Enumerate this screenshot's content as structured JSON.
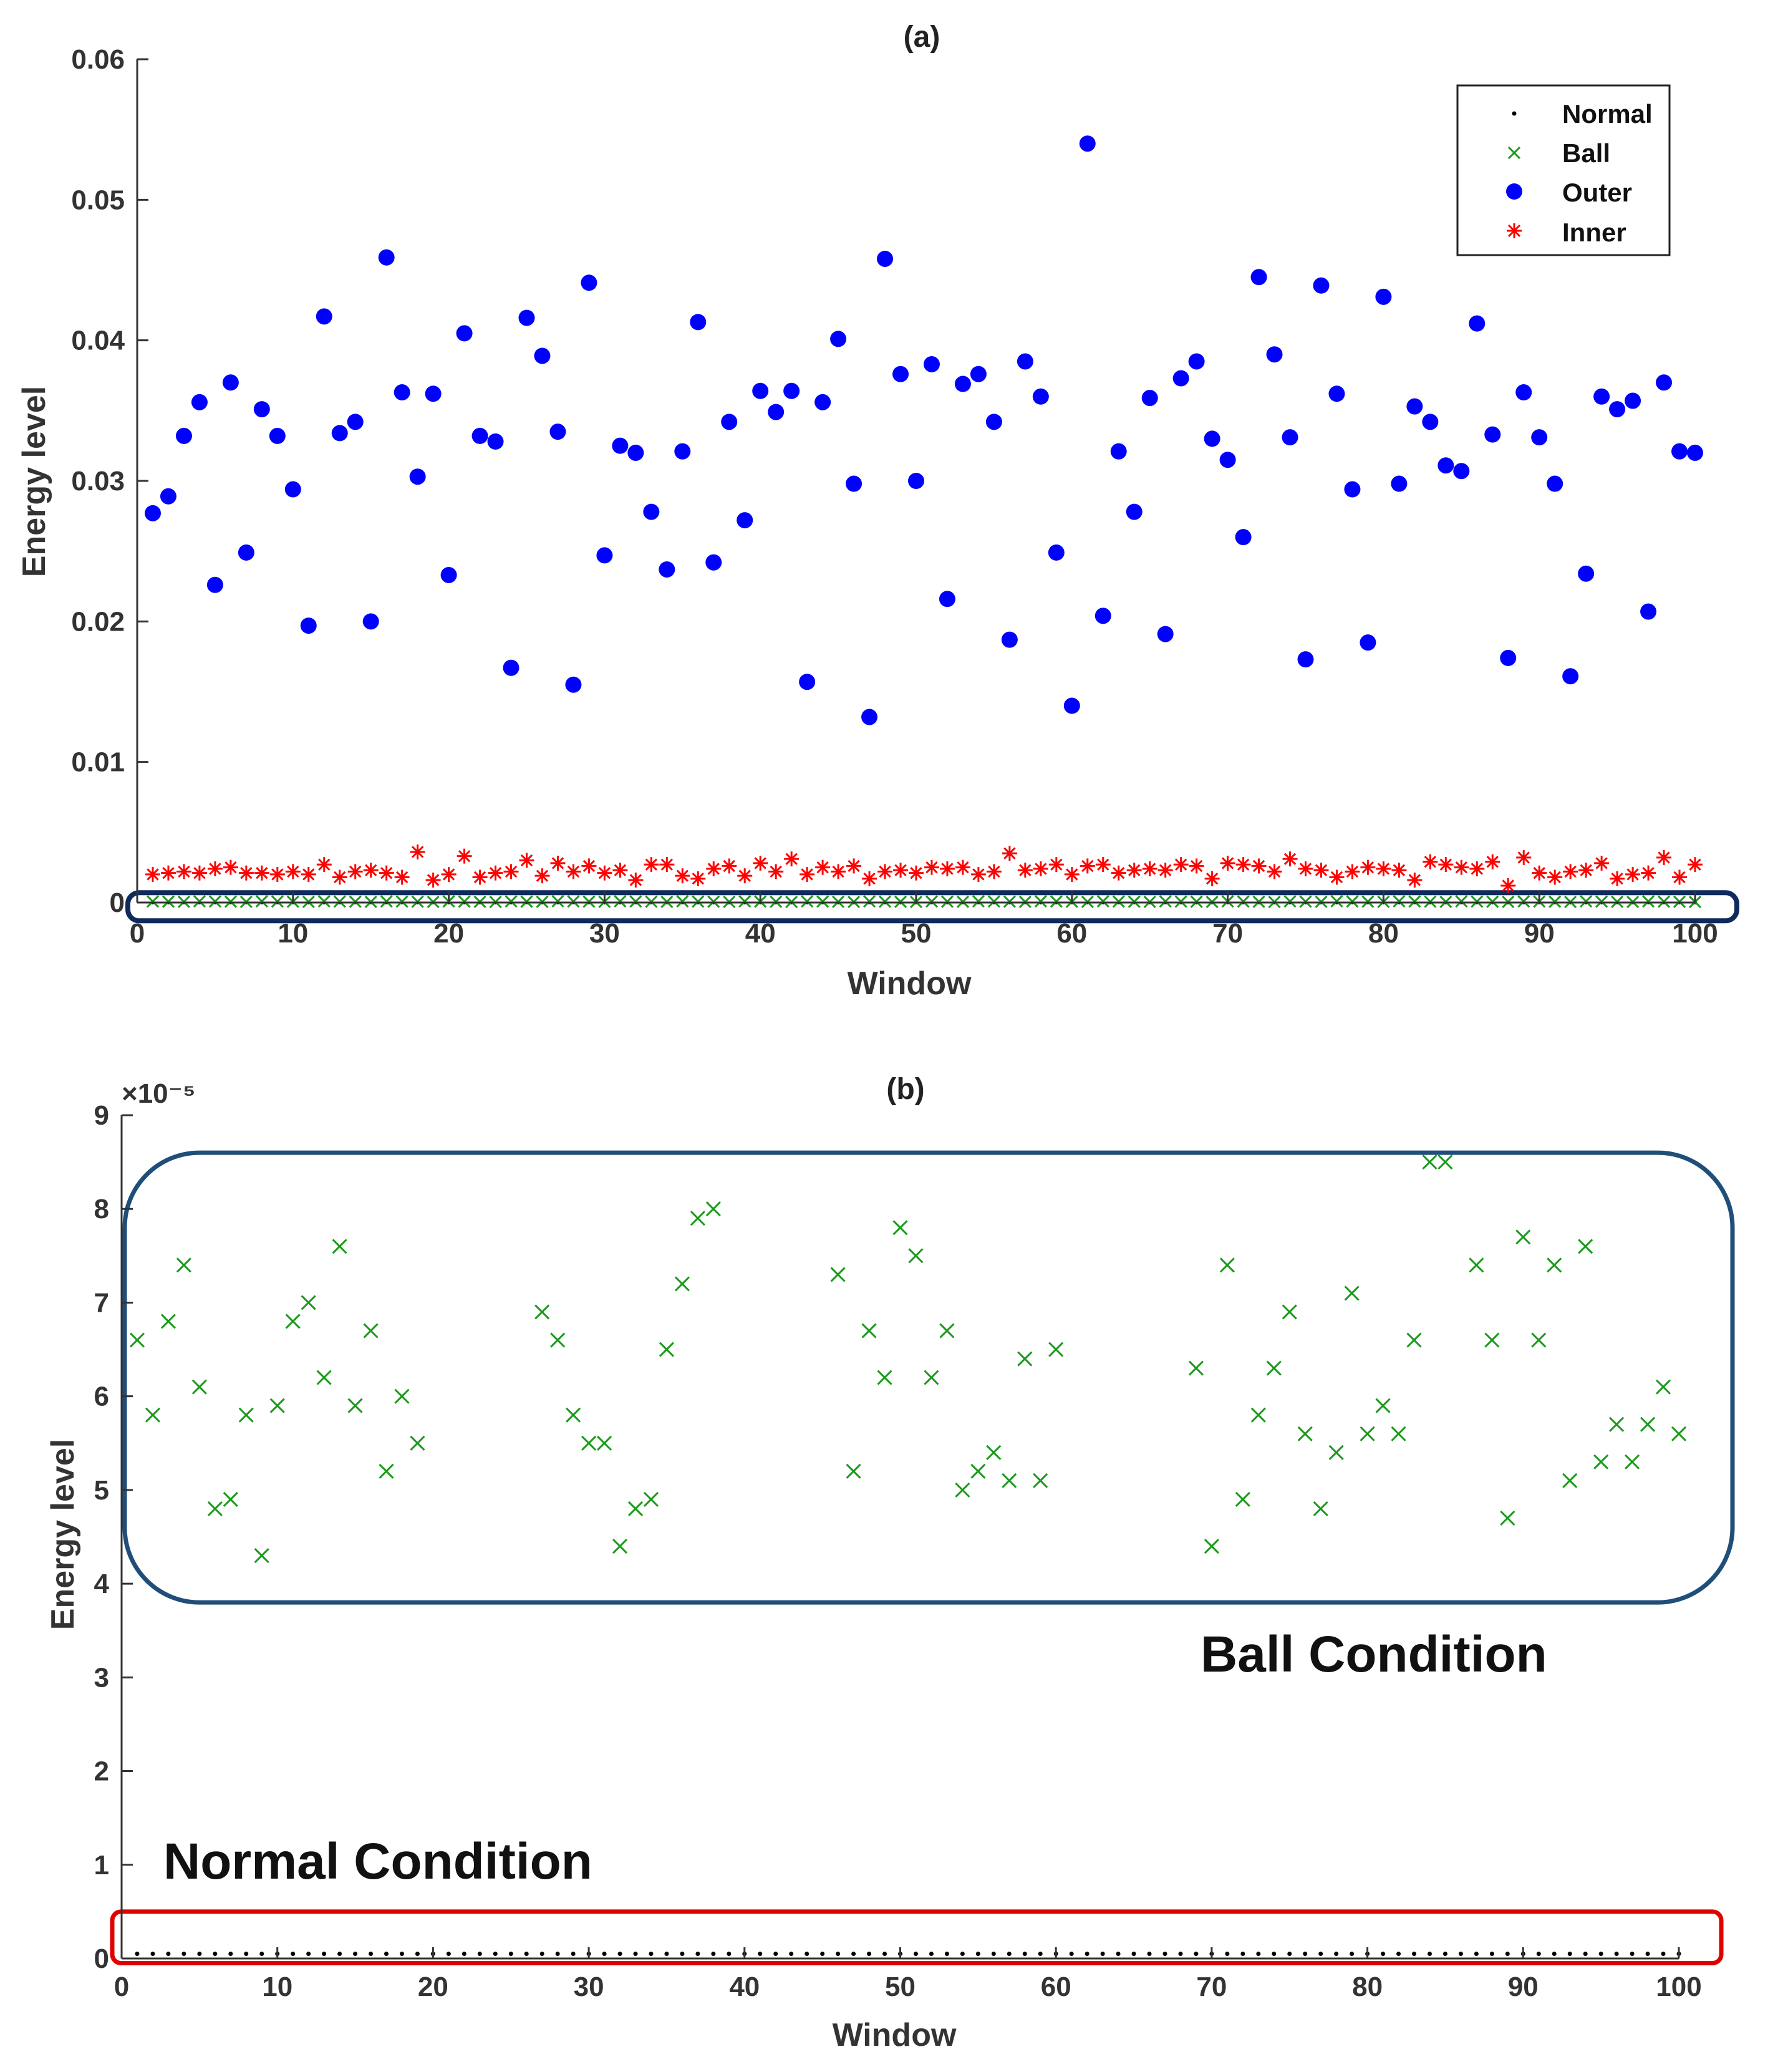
{
  "chart_data": [
    {
      "type": "scatter",
      "title": "(a)",
      "xlabel": "Window",
      "ylabel": "Energy level",
      "xlim": [
        0,
        100
      ],
      "ylim": [
        0,
        0.06
      ],
      "xticks": [
        0,
        10,
        20,
        30,
        40,
        50,
        60,
        70,
        80,
        90,
        100
      ],
      "yticks": [
        0,
        0.01,
        0.02,
        0.03,
        0.04,
        0.05,
        0.06
      ],
      "ytick_labels": [
        "0",
        "0.01",
        "0.02",
        "0.03",
        "0.04",
        "0.05",
        "0.06"
      ],
      "legend_position": "top-right",
      "legend": [
        "Normal",
        "Ball",
        "Outer",
        "Inner"
      ],
      "highlight_box": {
        "label": "",
        "y_range": [
          -0.0013,
          0.0007
        ],
        "color": "#0f2a5c"
      },
      "series": [
        {
          "name": "Normal",
          "marker": "dot",
          "color": "#000000",
          "x": "1..100",
          "values": "constant 0.000001"
        },
        {
          "name": "Ball",
          "marker": "x",
          "color": "#1a9a1a",
          "x": "1..100",
          "values": "0.00004-0.00009 (see panel b)"
        },
        {
          "name": "Outer",
          "marker": "circle",
          "color": "#0000ff",
          "x": "1..100",
          "values": [
            0.0277,
            0.0289,
            0.0332,
            0.0356,
            0.0226,
            0.037,
            0.0249,
            0.0351,
            0.0332,
            0.0294,
            0.0197,
            0.0417,
            0.0334,
            0.0342,
            0.02,
            0.0459,
            0.0363,
            0.0303,
            0.0362,
            0.0233,
            0.0405,
            0.0332,
            0.0328,
            0.0167,
            0.0416,
            0.0389,
            0.0335,
            0.0155,
            0.0441,
            0.0247,
            0.0325,
            0.032,
            0.0278,
            0.0237,
            0.0321,
            0.0413,
            0.0242,
            0.0342,
            0.0272,
            0.0364,
            0.0349,
            0.0364,
            0.0157,
            0.0356,
            0.0401,
            0.0298,
            0.0132,
            0.0458,
            0.0376,
            0.03,
            0.0383,
            0.0216,
            0.0369,
            0.0376,
            0.0342,
            0.0187,
            0.0385,
            0.036,
            0.0249,
            0.014,
            0.054,
            0.0204,
            0.0321,
            0.0278,
            0.0359,
            0.0191,
            0.0373,
            0.0385,
            0.033,
            0.0315,
            0.026,
            0.0445,
            0.039,
            0.0331,
            0.0173,
            0.0439,
            0.0362,
            0.0294,
            0.0185,
            0.0431,
            0.0298,
            0.0353,
            0.0342,
            0.0311,
            0.0307,
            0.0412,
            0.0333,
            0.0174,
            0.0363,
            0.0331,
            0.0298,
            0.0161,
            0.0234,
            0.036,
            0.0351,
            0.0357,
            0.0207,
            0.037,
            0.0321,
            0.032
          ]
        },
        {
          "name": "Inner",
          "marker": "star",
          "color": "#ff0000",
          "x": "1..100",
          "values": [
            0.002,
            0.0021,
            0.0022,
            0.0021,
            0.0024,
            0.0025,
            0.0021,
            0.0021,
            0.002,
            0.0022,
            0.002,
            0.0027,
            0.0018,
            0.0022,
            0.0023,
            0.0021,
            0.0018,
            0.0036,
            0.0016,
            0.002,
            0.0033,
            0.0018,
            0.0021,
            0.0022,
            0.003,
            0.0019,
            0.0028,
            0.0022,
            0.0026,
            0.0021,
            0.0023,
            0.0016,
            0.0027,
            0.0027,
            0.0019,
            0.0017,
            0.0024,
            0.0026,
            0.0019,
            0.0028,
            0.0022,
            0.0031,
            0.002,
            0.0025,
            0.0022,
            0.0026,
            0.0017,
            0.0022,
            0.0023,
            0.0021,
            0.0025,
            0.0024,
            0.0025,
            0.002,
            0.0022,
            0.0035,
            0.0023,
            0.0024,
            0.0027,
            0.002,
            0.0026,
            0.0027,
            0.0021,
            0.0023,
            0.0024,
            0.0023,
            0.0027,
            0.0026,
            0.0017,
            0.0028,
            0.0027,
            0.0026,
            0.0022,
            0.0031,
            0.0024,
            0.0023,
            0.0018,
            0.0022,
            0.0025,
            0.0024,
            0.0023,
            0.0016,
            0.0029,
            0.0027,
            0.0025,
            0.0024,
            0.0029,
            0.0012,
            0.0032,
            0.0021,
            0.0018,
            0.0022,
            0.0023,
            0.0028,
            0.0017,
            0.002,
            0.0021,
            0.0032,
            0.0018,
            0.0027
          ]
        }
      ]
    },
    {
      "type": "scatter",
      "title": "(b)",
      "xlabel": "Window",
      "ylabel": "Energy level",
      "exponent_label": "×10⁻⁵",
      "xlim": [
        0,
        100
      ],
      "ylim": [
        0,
        9
      ],
      "xticks": [
        0,
        10,
        20,
        30,
        40,
        50,
        60,
        70,
        80,
        90,
        100
      ],
      "yticks": [
        0,
        1,
        2,
        3,
        4,
        5,
        6,
        7,
        8,
        9
      ],
      "annotations": [
        "Ball Condition",
        "Normal Condition"
      ],
      "highlight_boxes": [
        {
          "label": "Ball Condition",
          "y_range": [
            3.8,
            8.6
          ],
          "color": "#1f4e79"
        },
        {
          "label": "Normal Condition",
          "y_range": [
            -0.05,
            0.5
          ],
          "color": "#e00000"
        }
      ],
      "series": [
        {
          "name": "Normal",
          "marker": "dot",
          "color": "#000000",
          "x": "1..100",
          "values": "constant 0.05"
        },
        {
          "name": "Ball",
          "marker": "x",
          "color": "#1a9a1a",
          "x": [
            1,
            2,
            3,
            4,
            5,
            6,
            7,
            8,
            9,
            10,
            11,
            12,
            13,
            14,
            15,
            16,
            17,
            18,
            19,
            27,
            28,
            29,
            30,
            31,
            32,
            33,
            34,
            35,
            36,
            37,
            38,
            46,
            47,
            48,
            49,
            50,
            51,
            52,
            53,
            54,
            55,
            56,
            57,
            58,
            59,
            60,
            69,
            70,
            71,
            72,
            73,
            74,
            75,
            76,
            77,
            78,
            79,
            80,
            81,
            82,
            83,
            84,
            85,
            87,
            88,
            89,
            90,
            91,
            92,
            93,
            94,
            95,
            96,
            97,
            98,
            99,
            100
          ],
          "values": [
            6.6,
            5.8,
            6.8,
            7.4,
            6.1,
            4.8,
            4.9,
            5.8,
            4.3,
            5.9,
            6.8,
            7.0,
            6.2,
            7.6,
            5.9,
            6.7,
            5.2,
            6.0,
            5.5,
            6.9,
            6.6,
            5.8,
            5.5,
            5.5,
            4.4,
            4.8,
            4.9,
            6.5,
            7.2,
            7.9,
            8.0,
            7.3,
            5.2,
            6.7,
            6.2,
            7.8,
            7.5,
            6.2,
            6.7,
            5.0,
            5.2,
            5.4,
            5.1,
            6.4,
            5.1,
            6.5,
            6.3,
            4.4,
            7.4,
            4.9,
            5.8,
            6.3,
            6.9,
            5.6,
            4.8,
            5.4,
            7.1,
            5.6,
            5.9,
            5.6,
            6.6,
            8.5,
            8.5,
            7.4,
            6.6,
            4.7,
            7.7,
            6.6,
            7.4,
            5.1,
            7.6,
            5.3,
            5.7,
            5.3,
            5.7,
            6.1,
            5.6
          ]
        }
      ]
    }
  ],
  "colors": {
    "ball": "#1a9a1a",
    "outer": "#0000ff",
    "inner": "#ff0000",
    "normal": "#000000",
    "box_a": "#0f2a5c",
    "box_ball": "#1f4e79",
    "box_normal": "#e00000"
  }
}
